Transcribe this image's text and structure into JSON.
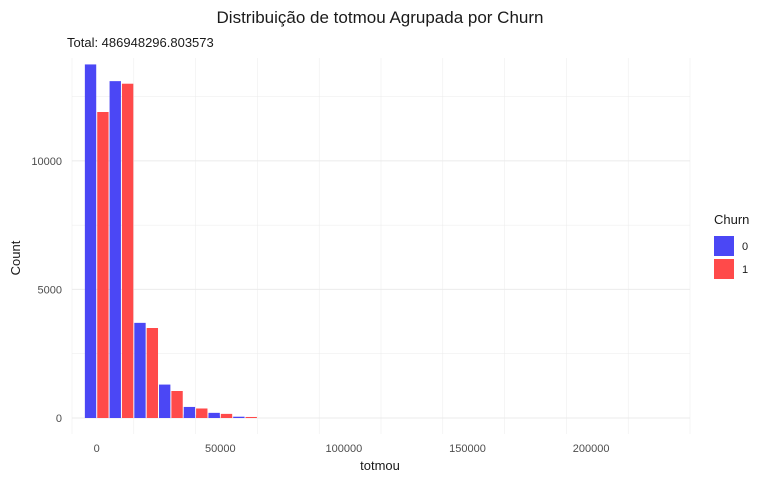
{
  "chart_data": {
    "type": "bar",
    "title": "Distribuição de totmou Agrupada por Churn",
    "subtitle": "Total: 486948296.803573",
    "xlabel": "totmou",
    "ylabel": "Count",
    "bin_width": 10000,
    "bin_centers": [
      0,
      10000,
      20000,
      30000,
      40000,
      50000
    ],
    "series": [
      {
        "name": "0",
        "color": "#4B47F5",
        "values": [
          13750,
          13100,
          3700,
          1300,
          430,
          200
        ]
      },
      {
        "name": "1",
        "color": "#FF4A4A",
        "values": [
          11900,
          13000,
          3500,
          1050,
          370,
          160
        ]
      }
    ],
    "extra_bins": {
      "bin_centers": [
        40000,
        50000,
        60000
      ],
      "values_0": [
        130,
        90,
        50
      ],
      "values_1": [
        100,
        60,
        40
      ]
    },
    "xlim": [
      -10000,
      240000
    ],
    "ylim": [
      0,
      14000
    ],
    "x_ticks": [
      "0",
      "50000",
      "100000",
      "150000",
      "200000"
    ],
    "x_tick_values": [
      0,
      50000,
      100000,
      150000,
      200000
    ],
    "y_ticks": [
      "0",
      "5000",
      "10000"
    ],
    "y_tick_values": [
      0,
      5000,
      10000
    ],
    "legend": {
      "title": "Churn",
      "position": "right",
      "items": [
        "0",
        "1"
      ]
    },
    "grid": true
  }
}
